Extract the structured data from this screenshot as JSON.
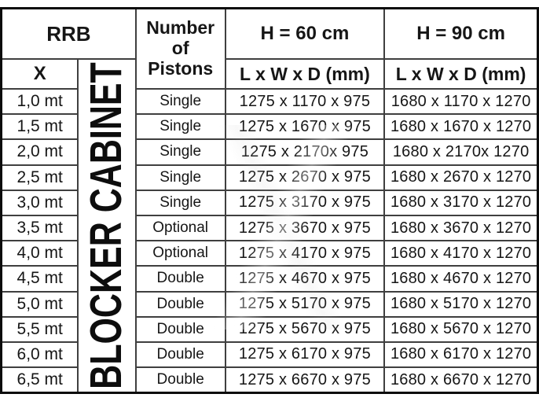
{
  "table": {
    "header": {
      "rrb": "RRB",
      "x": "X",
      "pistons": "Number of Pistons",
      "h60": "H = 60 cm",
      "h90": "H = 90 cm",
      "dims": "L x W x D (mm)",
      "cabinet": "BLOCKER CABINET"
    },
    "rows": [
      {
        "x": "1,0 mt",
        "pistons": "Single",
        "h60": "1275 x 1170 x 975",
        "h90": "1680 x 1170 x 1270"
      },
      {
        "x": "1,5 mt",
        "pistons": "Single",
        "h60": "1275 x 1670 x 975",
        "h90": "1680 x 1670 x 1270"
      },
      {
        "x": "2,0 mt",
        "pistons": "Single",
        "h60": "1275 x 2170x 975",
        "h90": "1680 x 2170x 1270"
      },
      {
        "x": "2,5 mt",
        "pistons": "Single",
        "h60": "1275 x 2670 x 975",
        "h90": "1680 x 2670 x 1270"
      },
      {
        "x": "3,0 mt",
        "pistons": "Single",
        "h60": "1275 x 3170 x 975",
        "h90": "1680 x 3170 x 1270"
      },
      {
        "x": "3,5 mt",
        "pistons": "Optional",
        "h60": "1275 x 3670 x 975",
        "h90": "1680 x 3670 x 1270"
      },
      {
        "x": "4,0 mt",
        "pistons": "Optional",
        "h60": "1275 x 4170 x 975",
        "h90": "1680 x 4170 x 1270"
      },
      {
        "x": "4,5 mt",
        "pistons": "Double",
        "h60": "1275 x 4670 x 975",
        "h90": "1680 x 4670 x 1270"
      },
      {
        "x": "5,0 mt",
        "pistons": "Double",
        "h60": "1275 x 5170 x 975",
        "h90": "1680 x 5170 x 1270"
      },
      {
        "x": "5,5 mt",
        "pistons": "Double",
        "h60": "1275 x 5670 x 975",
        "h90": "1680 x 5670 x 1270"
      },
      {
        "x": "6,0 mt",
        "pistons": "Double",
        "h60": "1275 x 6170 x 975",
        "h90": "1680 x 6170 x 1270"
      },
      {
        "x": "6,5 mt",
        "pistons": "Double",
        "h60": "1275 x 6670 x 975",
        "h90": "1680 x 6670 x 1270"
      }
    ]
  }
}
